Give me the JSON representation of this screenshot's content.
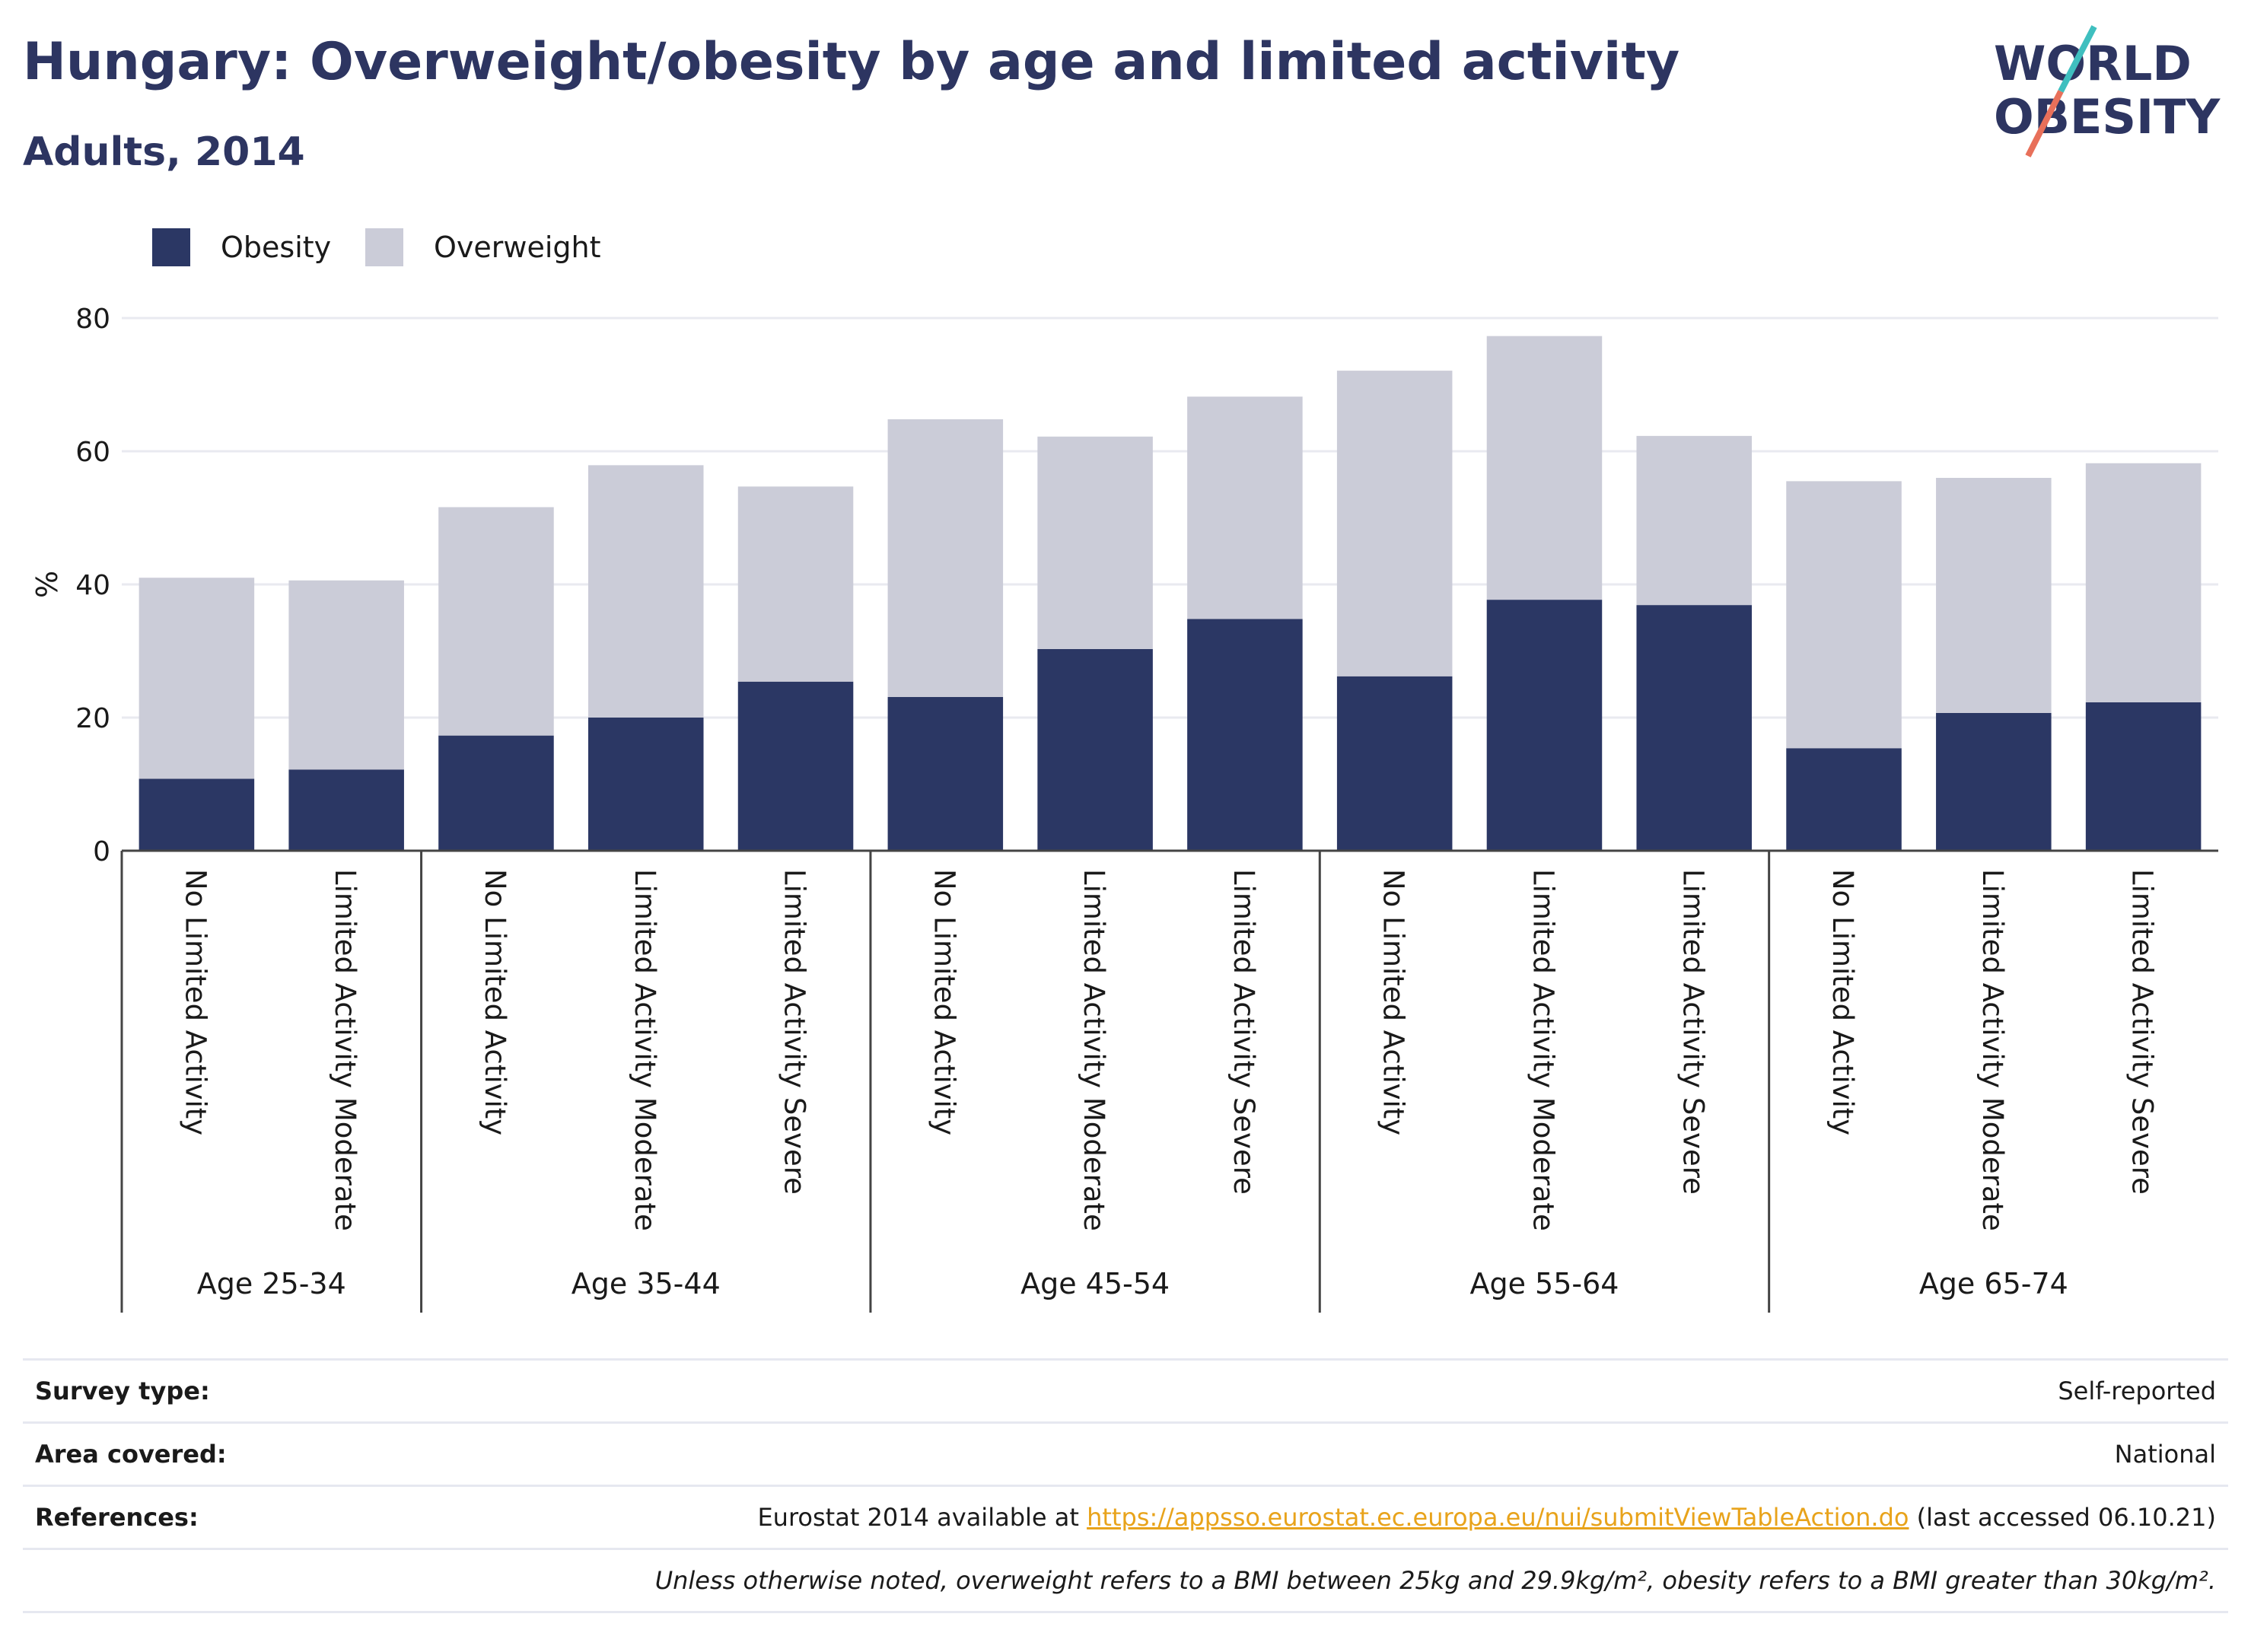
{
  "title": "Hungary: Overweight/obesity by age and limited activity",
  "subtitle": "Adults, 2014",
  "logo": {
    "line1": "WORLD",
    "line2": "OBESITY",
    "accent_colors": [
      "#3fbfbf",
      "#e8705a"
    ]
  },
  "legend": [
    {
      "label": "Obesity",
      "color": "#2b3764"
    },
    {
      "label": "Overweight",
      "color": "#cbccd8"
    }
  ],
  "chart_data": {
    "type": "bar",
    "stacked": true,
    "ylabel": "%",
    "ylim": [
      0,
      80
    ],
    "yticks": [
      0,
      20,
      40,
      60,
      80
    ],
    "grid": true,
    "legend_position": "top-left",
    "groups": [
      {
        "label": "Age 25-34",
        "categories": [
          "No Limited Activity",
          "Limited Activity Moderate"
        ]
      },
      {
        "label": "Age 35-44",
        "categories": [
          "No Limited Activity",
          "Limited Activity Moderate",
          "Limited Activity Severe"
        ]
      },
      {
        "label": "Age 45-54",
        "categories": [
          "No Limited Activity",
          "Limited Activity Moderate",
          "Limited Activity Severe"
        ]
      },
      {
        "label": "Age 55-64",
        "categories": [
          "No Limited Activity",
          "Limited Activity Moderate",
          "Limited Activity Severe"
        ]
      },
      {
        "label": "Age 65-74",
        "categories": [
          "No Limited Activity",
          "Limited Activity Moderate",
          "Limited Activity Severe"
        ]
      }
    ],
    "series": [
      {
        "name": "Obesity",
        "color": "#2b3764",
        "values": [
          10.8,
          12.2,
          17.3,
          20.0,
          25.4,
          23.1,
          30.3,
          34.8,
          26.2,
          37.7,
          36.9,
          15.4,
          20.7,
          22.3
        ]
      },
      {
        "name": "Overweight",
        "color": "#cbccd8",
        "values": [
          30.2,
          28.4,
          34.3,
          37.9,
          29.3,
          41.7,
          31.9,
          33.4,
          45.9,
          39.6,
          25.4,
          40.1,
          35.3,
          35.9
        ]
      }
    ]
  },
  "info": {
    "survey_label": "Survey type:",
    "survey_value": "Self-reported",
    "area_label": "Area covered:",
    "area_value": "National",
    "refs_label": "References:",
    "refs_prefix": "Eurostat 2014 available at ",
    "refs_link": "https://appsso.eurostat.ec.europa.eu/nui/submitViewTableAction.do",
    "refs_suffix": " (last accessed 06.10.21)",
    "note": "Unless otherwise noted, overweight refers to a BMI between 25kg and 29.9kg/m², obesity refers to a BMI greater than 30kg/m²."
  }
}
